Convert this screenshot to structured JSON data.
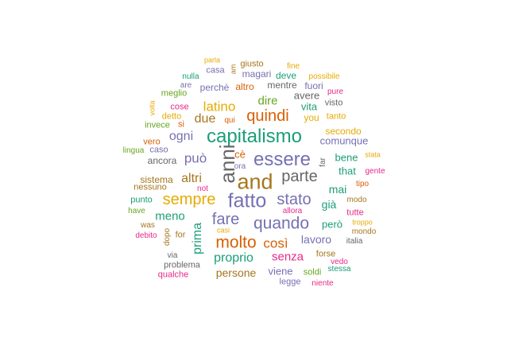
{
  "palette": {
    "teal": "#1b9e77",
    "orange": "#d95f02",
    "purple": "#7570b3",
    "pink": "#e7298a",
    "green": "#66a61e",
    "gold": "#e6ab02",
    "brown": "#a6761d",
    "gray": "#666666"
  },
  "words": [
    {
      "text": "capitalismo",
      "color": "#1b9e77"
    },
    {
      "text": "and",
      "color": "#a6761d"
    },
    {
      "text": "anni",
      "color": "#666666",
      "rotated": true
    },
    {
      "text": "essere",
      "color": "#7570b3"
    },
    {
      "text": "fatto",
      "color": "#7570b3"
    },
    {
      "text": "quando",
      "color": "#7570b3"
    },
    {
      "text": "molto",
      "color": "#d95f02"
    },
    {
      "text": "quindi",
      "color": "#d95f02"
    },
    {
      "text": "parte",
      "color": "#666666"
    },
    {
      "text": "stato",
      "color": "#7570b3"
    },
    {
      "text": "sempre",
      "color": "#e6ab02"
    },
    {
      "text": "fare",
      "color": "#7570b3"
    },
    {
      "text": "così",
      "color": "#d95f02"
    },
    {
      "text": "senza",
      "color": "#e7298a"
    },
    {
      "text": "proprio",
      "color": "#1b9e77"
    },
    {
      "text": "prima",
      "color": "#1b9e77",
      "rotated": true
    },
    {
      "text": "latino",
      "color": "#e6ab02"
    },
    {
      "text": "può",
      "color": "#7570b3"
    },
    {
      "text": "altri",
      "color": "#a6761d"
    },
    {
      "text": "ogni",
      "color": "#7570b3"
    },
    {
      "text": "due",
      "color": "#a6761d"
    },
    {
      "text": "dire",
      "color": "#66a61e"
    },
    {
      "text": "persone",
      "color": "#a6761d"
    },
    {
      "text": "meno",
      "color": "#1b9e77"
    },
    {
      "text": "lavoro",
      "color": "#7570b3"
    },
    {
      "text": "mai",
      "color": "#1b9e77"
    },
    {
      "text": "già",
      "color": "#1b9e77"
    },
    {
      "text": "comunque",
      "color": "#7570b3"
    },
    {
      "text": "viene",
      "color": "#7570b3"
    },
    {
      "text": "cè",
      "color": "#d95f02"
    },
    {
      "text": "bene",
      "color": "#1b9e77"
    },
    {
      "text": "that",
      "color": "#1b9e77"
    },
    {
      "text": "vita",
      "color": "#1b9e77"
    },
    {
      "text": "avere",
      "color": "#666666"
    },
    {
      "text": "però",
      "color": "#1b9e77"
    },
    {
      "text": "mentre",
      "color": "#666666"
    },
    {
      "text": "magari",
      "color": "#7570b3"
    },
    {
      "text": "deve",
      "color": "#1b9e77"
    },
    {
      "text": "altro",
      "color": "#d95f02"
    },
    {
      "text": "perchè",
      "color": "#7570b3"
    },
    {
      "text": "fuori",
      "color": "#7570b3"
    },
    {
      "text": "you",
      "color": "#e6ab02"
    },
    {
      "text": "tanto",
      "color": "#e6ab02"
    },
    {
      "text": "secondo",
      "color": "#e6ab02"
    },
    {
      "text": "sistema",
      "color": "#a6761d"
    },
    {
      "text": "ancora",
      "color": "#666666"
    },
    {
      "text": "invece",
      "color": "#66a61e"
    },
    {
      "text": "cose",
      "color": "#e7298a"
    },
    {
      "text": "detto",
      "color": "#e6ab02"
    },
    {
      "text": "meglio",
      "color": "#66a61e"
    },
    {
      "text": "caso",
      "color": "#7570b3"
    },
    {
      "text": "vero",
      "color": "#d95f02"
    },
    {
      "text": "nessuno",
      "color": "#a6761d"
    },
    {
      "text": "punto",
      "color": "#1b9e77"
    },
    {
      "text": "have",
      "color": "#66a61e"
    },
    {
      "text": "was",
      "color": "#a6761d"
    },
    {
      "text": "debito",
      "color": "#e7298a"
    },
    {
      "text": "for",
      "color": "#a6761d"
    },
    {
      "text": "dopo",
      "color": "#a6761d",
      "rotated": true
    },
    {
      "text": "via",
      "color": "#666666"
    },
    {
      "text": "problema",
      "color": "#666666"
    },
    {
      "text": "qualche",
      "color": "#e7298a"
    },
    {
      "text": "forse",
      "color": "#a6761d"
    },
    {
      "text": "vedo",
      "color": "#e7298a"
    },
    {
      "text": "stessa",
      "color": "#1b9e77"
    },
    {
      "text": "soldi",
      "color": "#66a61e"
    },
    {
      "text": "legge",
      "color": "#7570b3"
    },
    {
      "text": "niente",
      "color": "#e7298a"
    },
    {
      "text": "italia",
      "color": "#666666"
    },
    {
      "text": "mondo",
      "color": "#a6761d"
    },
    {
      "text": "troppo",
      "color": "#e6ab02"
    },
    {
      "text": "tutte",
      "color": "#e7298a"
    },
    {
      "text": "modo",
      "color": "#a6761d"
    },
    {
      "text": "tipo",
      "color": "#d95f02"
    },
    {
      "text": "gente",
      "color": "#e7298a"
    },
    {
      "text": "stata",
      "color": "#e6ab02"
    },
    {
      "text": "far",
      "color": "#666666",
      "rotated": true
    },
    {
      "text": "visto",
      "color": "#666666"
    },
    {
      "text": "pure",
      "color": "#e7298a"
    },
    {
      "text": "possibile",
      "color": "#e6ab02"
    },
    {
      "text": "fine",
      "color": "#e6ab02"
    },
    {
      "text": "giusto",
      "color": "#a6761d"
    },
    {
      "text": "casa",
      "color": "#7570b3"
    },
    {
      "text": "parla",
      "color": "#e6ab02"
    },
    {
      "text": "nulla",
      "color": "#1b9e77"
    },
    {
      "text": "are",
      "color": "#7570b3"
    },
    {
      "text": "qui",
      "color": "#d95f02"
    },
    {
      "text": "si",
      "color": "#d95f02"
    },
    {
      "text": "lingua",
      "color": "#66a61e"
    },
    {
      "text": "ora",
      "color": "#7570b3"
    },
    {
      "text": "not",
      "color": "#e7298a"
    },
    {
      "text": "allora",
      "color": "#e7298a"
    },
    {
      "text": "casi",
      "color": "#e6ab02"
    },
    {
      "text": "volta",
      "color": "#e6ab02",
      "rotated": true
    },
    {
      "text": "am",
      "color": "#a6761d",
      "rotated": true
    }
  ]
}
